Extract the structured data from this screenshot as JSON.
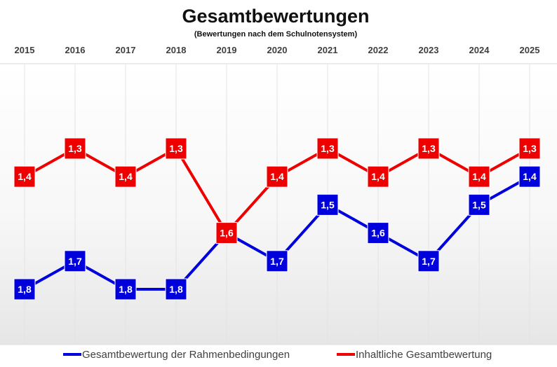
{
  "chart_data": {
    "type": "line",
    "title": "Gesamtbewertungen",
    "subtitle": "(Bewertungen nach dem Schulnotensystem)",
    "xlabel": "",
    "ylabel": "",
    "categories": [
      "2015",
      "2016",
      "2017",
      "2018",
      "2019",
      "2020",
      "2021",
      "2022",
      "2023",
      "2024",
      "2025"
    ],
    "ylim": [
      1.0,
      2.0
    ],
    "y_inverted": true,
    "x_axis_position": "top",
    "grid": "vertical",
    "legend_position": "bottom",
    "series": [
      {
        "name": "Gesamtbewertung der Rahmenbedingungen",
        "color": "#0000DD",
        "values": [
          1.8,
          1.7,
          1.8,
          1.8,
          1.6,
          1.7,
          1.5,
          1.6,
          1.7,
          1.5,
          1.4
        ],
        "labels": [
          "1,8",
          "1,7",
          "1,8",
          "1,8",
          "1,6",
          "1,7",
          "1,5",
          "1,6",
          "1,7",
          "1,5",
          "1,4"
        ]
      },
      {
        "name": "Inhaltliche Gesamtbewertung",
        "color": "#EE0000",
        "values": [
          1.4,
          1.3,
          1.4,
          1.3,
          1.6,
          1.4,
          1.3,
          1.4,
          1.3,
          1.4,
          1.3
        ],
        "labels": [
          "1,4",
          "1,3",
          "1,4",
          "1,3",
          "1,6",
          "1,4",
          "1,3",
          "1,4",
          "1,3",
          "1,4",
          "1,3"
        ]
      }
    ]
  }
}
